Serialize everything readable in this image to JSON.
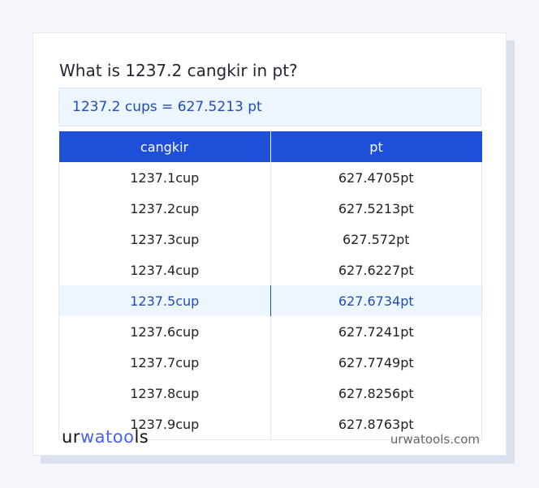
{
  "title": "What is 1237.2 cangkir in pt?",
  "result": "1237.2 cups = 627.5213 pt",
  "table": {
    "headers": [
      "cangkir",
      "pt"
    ],
    "rows": [
      [
        "1237.1cup",
        "627.4705pt"
      ],
      [
        "1237.2cup",
        "627.5213pt"
      ],
      [
        "1237.3cup",
        "627.572pt"
      ],
      [
        "1237.4cup",
        "627.6227pt"
      ],
      [
        "1237.5cup",
        "627.6734pt"
      ],
      [
        "1237.6cup",
        "627.7241pt"
      ],
      [
        "1237.7cup",
        "627.7749pt"
      ],
      [
        "1237.8cup",
        "627.8256pt"
      ],
      [
        "1237.9cup",
        "627.8763pt"
      ]
    ],
    "highlighted_row": 4
  },
  "footer": {
    "logo": "urwatools",
    "site": "urwatools.com"
  },
  "colors": {
    "accent": "#1d4fd8",
    "highlight_bg": "#edf5ff",
    "highlight_text": "#1f4db8"
  }
}
